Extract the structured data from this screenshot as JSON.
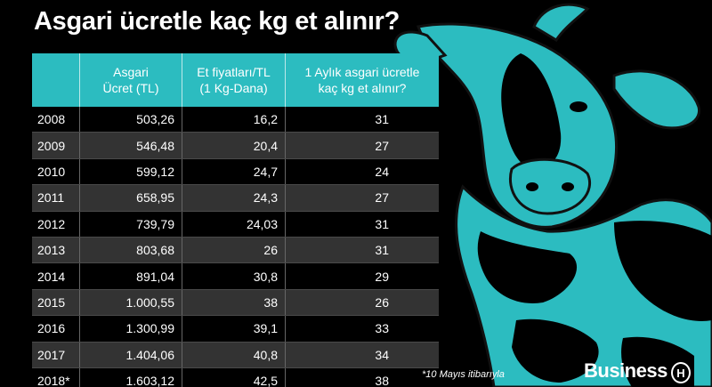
{
  "title": "Asgari ücretle kaç kg et alınır?",
  "headers": [
    "",
    "Asgari\nÜcret (TL)",
    "Et fiyatları/TL\n(1 Kg-Dana)",
    "1 Aylık asgari ücretle\nkaç kg et alınır?"
  ],
  "rows": [
    [
      "2008",
      "503,26",
      "16,2",
      "31"
    ],
    [
      "2009",
      "546,48",
      "20,4",
      "27"
    ],
    [
      "2010",
      "599,12",
      "24,7",
      "24"
    ],
    [
      "2011",
      "658,95",
      "24,3",
      "27"
    ],
    [
      "2012",
      "739,79",
      "24,03",
      "31"
    ],
    [
      "2013",
      "803,68",
      "26",
      "31"
    ],
    [
      "2014",
      "891,04",
      "30,8",
      "29"
    ],
    [
      "2015",
      "1.000,55",
      "38",
      "26"
    ],
    [
      "2016",
      "1.300,99",
      "39,1",
      "33"
    ],
    [
      "2017",
      "1.404,06",
      "40,8",
      "34"
    ],
    [
      "2018*",
      "1.603,12",
      "42,5",
      "38"
    ]
  ],
  "note": "*10 Mayıs itibarıyla",
  "brand": "Business",
  "brand_icon": "H",
  "colors": {
    "accent": "#2cbcc0",
    "background": "#000000",
    "stripe": "#333333"
  },
  "chart_data": {
    "type": "table",
    "title": "Asgari ücretle kaç kg et alınır?",
    "columns": [
      "",
      "Asgari Ücret (TL)",
      "Et fiyatları/TL (1 Kg-Dana)",
      "1 Aylık asgari ücretle kaç kg et alınır?"
    ],
    "categories": [
      "2008",
      "2009",
      "2010",
      "2011",
      "2012",
      "2013",
      "2014",
      "2015",
      "2016",
      "2017",
      "2018*"
    ],
    "series": [
      {
        "name": "Asgari Ücret (TL)",
        "values": [
          503.26,
          546.48,
          599.12,
          658.95,
          739.79,
          803.68,
          891.04,
          1000.55,
          1300.99,
          1404.06,
          1603.12
        ]
      },
      {
        "name": "Et fiyatları/TL (1 Kg-Dana)",
        "values": [
          16.2,
          20.4,
          24.7,
          24.3,
          24.03,
          26,
          30.8,
          38,
          39.1,
          40.8,
          42.5
        ]
      },
      {
        "name": "1 Aylık asgari ücretle kaç kg et alınır?",
        "values": [
          31,
          27,
          24,
          27,
          31,
          31,
          29,
          26,
          33,
          34,
          38
        ]
      }
    ]
  }
}
